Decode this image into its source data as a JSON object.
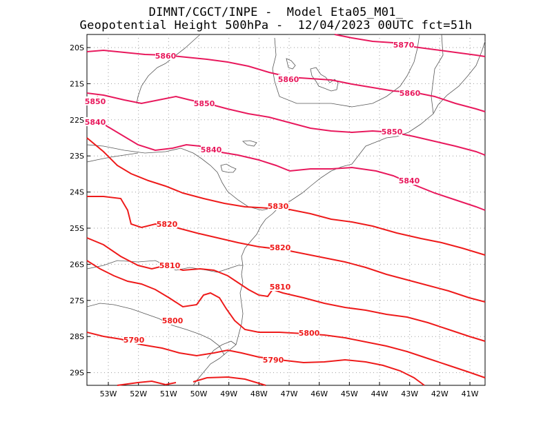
{
  "header": {
    "line1": "DIMNT/CGCT/INPE -  Model Eta05_M01_",
    "line2": "Geopotential Height 500hPa -  12/04/2023 00UTC fct=51h"
  },
  "colors": {
    "contour_high": "#e8185c",
    "contour_low": "#ee1a1a",
    "coast": "#555555",
    "grid": "#9a9a9a",
    "frame": "#000000"
  },
  "map": {
    "lon_ticks": [
      "53W",
      "52W",
      "51W",
      "50W",
      "49W",
      "48W",
      "47W",
      "46W",
      "45W",
      "44W",
      "43W",
      "42W",
      "41W"
    ],
    "lat_ticks": [
      "20S",
      "21S",
      "22S",
      "23S",
      "24S",
      "25S",
      "26S",
      "27S",
      "28S",
      "29S"
    ],
    "grid": "dotted",
    "contour_labels": [
      {
        "text": "5870",
        "tone": "high"
      },
      {
        "text": "5860",
        "tone": "high"
      },
      {
        "text": "5860",
        "tone": "high"
      },
      {
        "text": "5860",
        "tone": "high"
      },
      {
        "text": "5850",
        "tone": "high"
      },
      {
        "text": "5850",
        "tone": "high"
      },
      {
        "text": "5850",
        "tone": "high"
      },
      {
        "text": "5840",
        "tone": "high"
      },
      {
        "text": "5840",
        "tone": "high"
      },
      {
        "text": "5840",
        "tone": "high"
      },
      {
        "text": "5830",
        "tone": "low"
      },
      {
        "text": "5820",
        "tone": "low"
      },
      {
        "text": "5820",
        "tone": "low"
      },
      {
        "text": "5810",
        "tone": "low"
      },
      {
        "text": "5810",
        "tone": "low"
      },
      {
        "text": "5800",
        "tone": "low"
      },
      {
        "text": "5800",
        "tone": "low"
      },
      {
        "text": "5790",
        "tone": "low"
      },
      {
        "text": "5790",
        "tone": "low"
      }
    ]
  }
}
